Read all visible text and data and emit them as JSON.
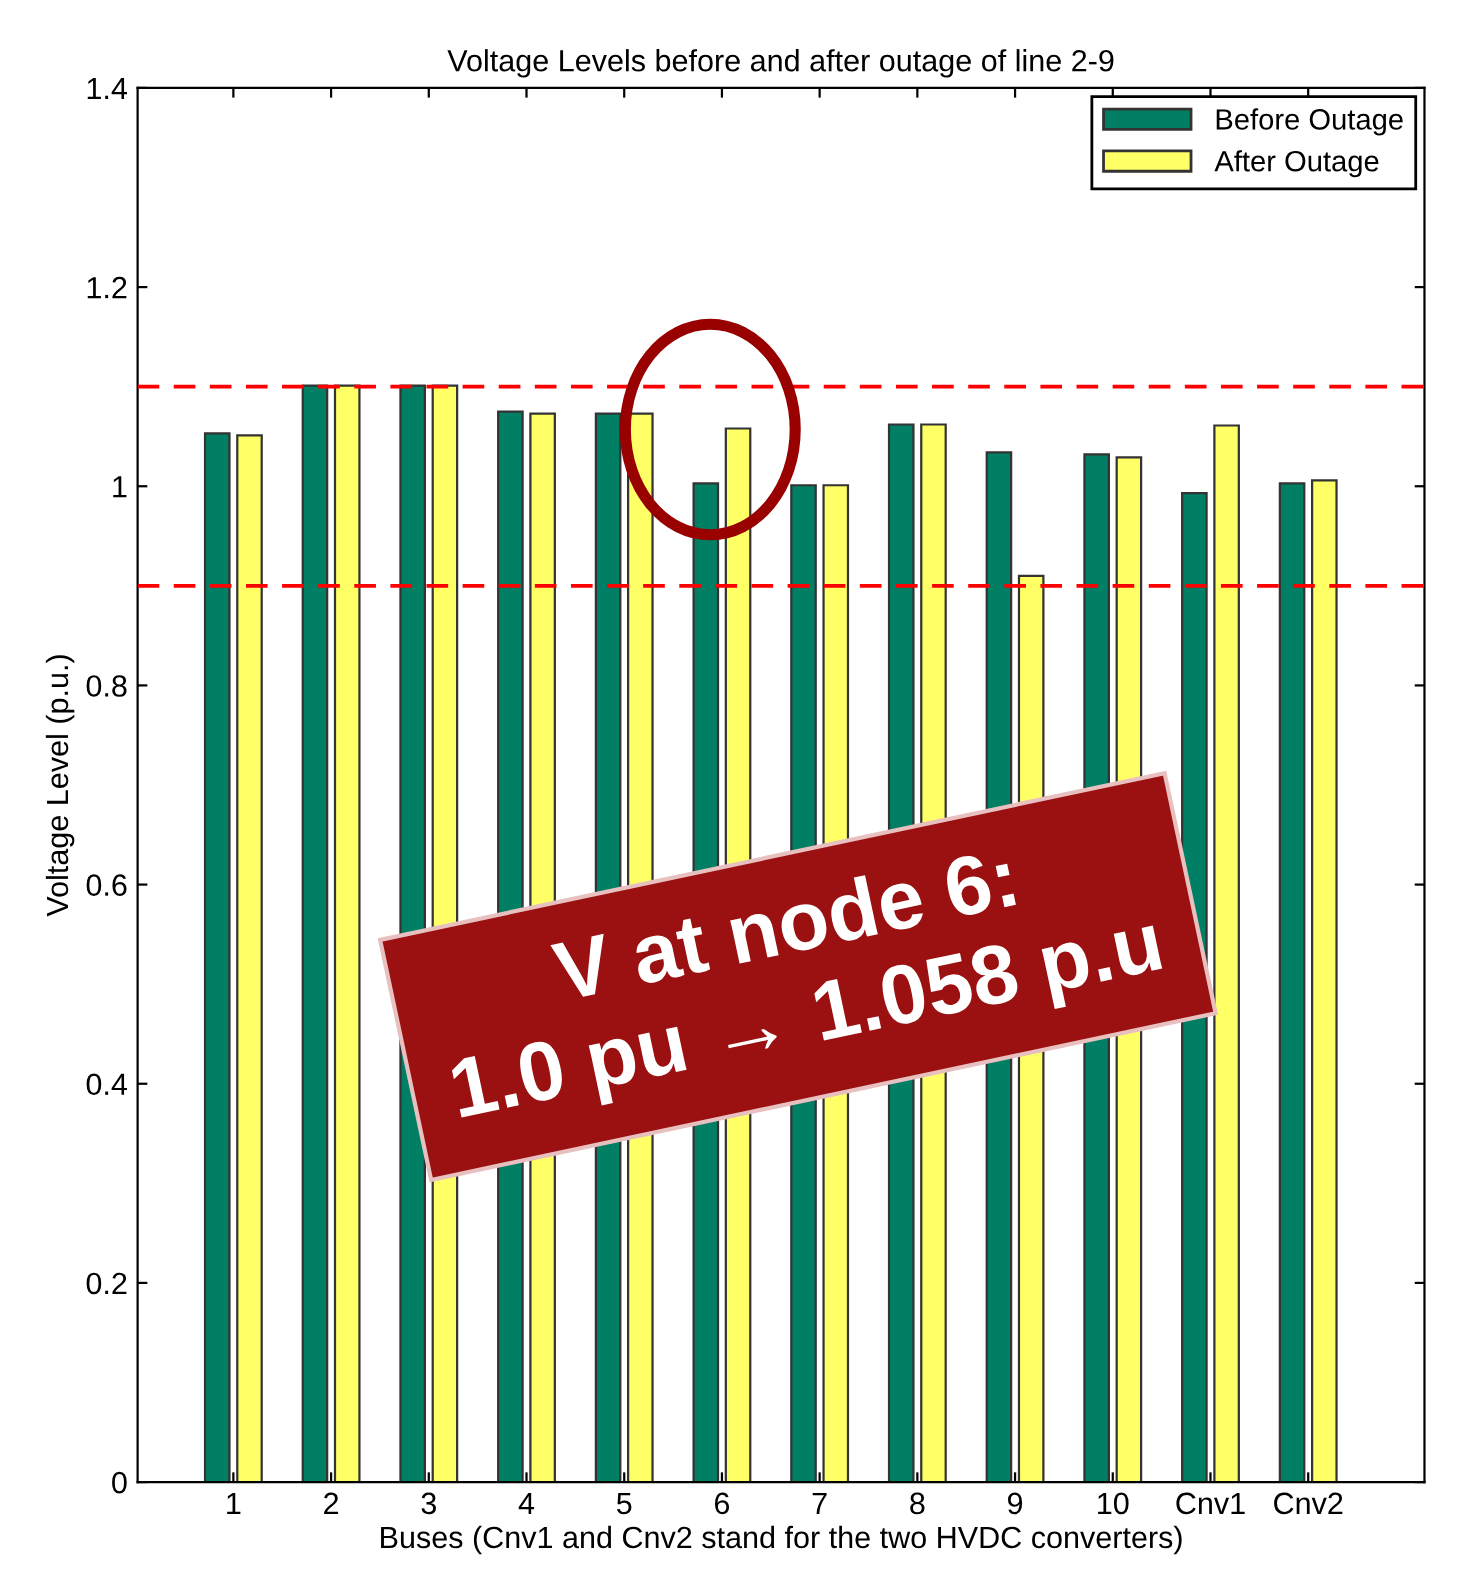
{
  "chart_data": {
    "type": "bar",
    "title": "Voltage Levels before and after outage of line 2-9",
    "xlabel": "Buses (Cnv1 and Cnv2 stand for the two HVDC converters)",
    "ylabel": "Voltage Level (p.u.)",
    "categories": [
      "1",
      "2",
      "3",
      "4",
      "5",
      "6",
      "7",
      "8",
      "9",
      "10",
      "Cnv1",
      "Cnv2"
    ],
    "series": [
      {
        "name": "Before Outage",
        "color": "#007f64",
        "values": [
          1.053,
          1.101,
          1.101,
          1.075,
          1.073,
          1.003,
          1.001,
          1.062,
          1.034,
          1.032,
          0.993,
          1.003
        ]
      },
      {
        "name": "After Outage",
        "color": "#ffff66",
        "values": [
          1.051,
          1.101,
          1.101,
          1.073,
          1.073,
          1.058,
          1.001,
          1.062,
          0.91,
          1.029,
          1.061,
          1.006
        ]
      }
    ],
    "ylim": [
      0,
      1.4
    ],
    "yticks": [
      0,
      0.2,
      0.4,
      0.6,
      0.8,
      1,
      1.2,
      1.4
    ],
    "ref_lines": [
      {
        "axis": "y",
        "value": 1.1,
        "color": "#ff0000",
        "line_style": "dashed"
      },
      {
        "axis": "y",
        "value": 0.9,
        "color": "#ff0000",
        "line_style": "dashed"
      }
    ],
    "annotations": [
      "V at node 6:\n1.0 pu → 1.058 p.u"
    ],
    "legend": "top right",
    "grid": false
  }
}
